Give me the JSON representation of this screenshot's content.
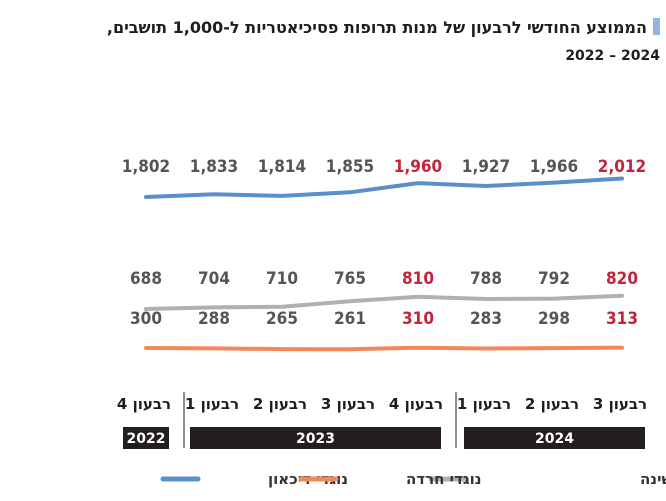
{
  "chart_data": {
    "type": "line",
    "title_line1": "הממוצע החודשי לרבעון של מנות תרופות פסיכיאטריות ל-1,000 תושבים,",
    "title_line2": "2024 – 2022",
    "categories": [
      "רבעון 4",
      "רבעון 1",
      "רבעון 2",
      "רבעון 3",
      "רבעון 4",
      "רבעון 1",
      "רבעון 2",
      "רבעון 3"
    ],
    "year_groups": [
      {
        "label": "2022",
        "count": 1
      },
      {
        "label": "2023",
        "count": 4
      },
      {
        "label": "2024",
        "count": 3
      }
    ],
    "series": [
      {
        "name": "נוגדי דיכאון",
        "color": "#5b8fc9",
        "values": [
          1802,
          1833,
          1814,
          1855,
          1960,
          1927,
          1966,
          2012
        ],
        "labels": [
          "1,802",
          "1,833",
          "1,814",
          "1,855",
          "1,960",
          "1,927",
          "1,966",
          "2,012"
        ]
      },
      {
        "name": "תרופות לשיפור השינה",
        "color": "#b0b0b0",
        "values": [
          688,
          704,
          710,
          765,
          810,
          788,
          792,
          820
        ],
        "labels": [
          "688",
          "704",
          "710",
          "765",
          "810",
          "788",
          "792",
          "820"
        ]
      },
      {
        "name": "נוגדי חרדה",
        "color": "#f08a5d",
        "values": [
          300,
          288,
          265,
          261,
          310,
          283,
          298,
          313
        ],
        "labels": [
          "300",
          "288",
          "265",
          "261",
          "310",
          "283",
          "298",
          "313"
        ]
      }
    ],
    "highlight_indices": [
      4,
      7
    ],
    "label_color": "#555555",
    "highlight_color": "#c0253c",
    "legend_order": [
      "נוגדי דיכאון",
      "נוגדי חרדה",
      "תרופות לשיפור השינה"
    ],
    "legend_position": "bottom",
    "grid": false
  }
}
